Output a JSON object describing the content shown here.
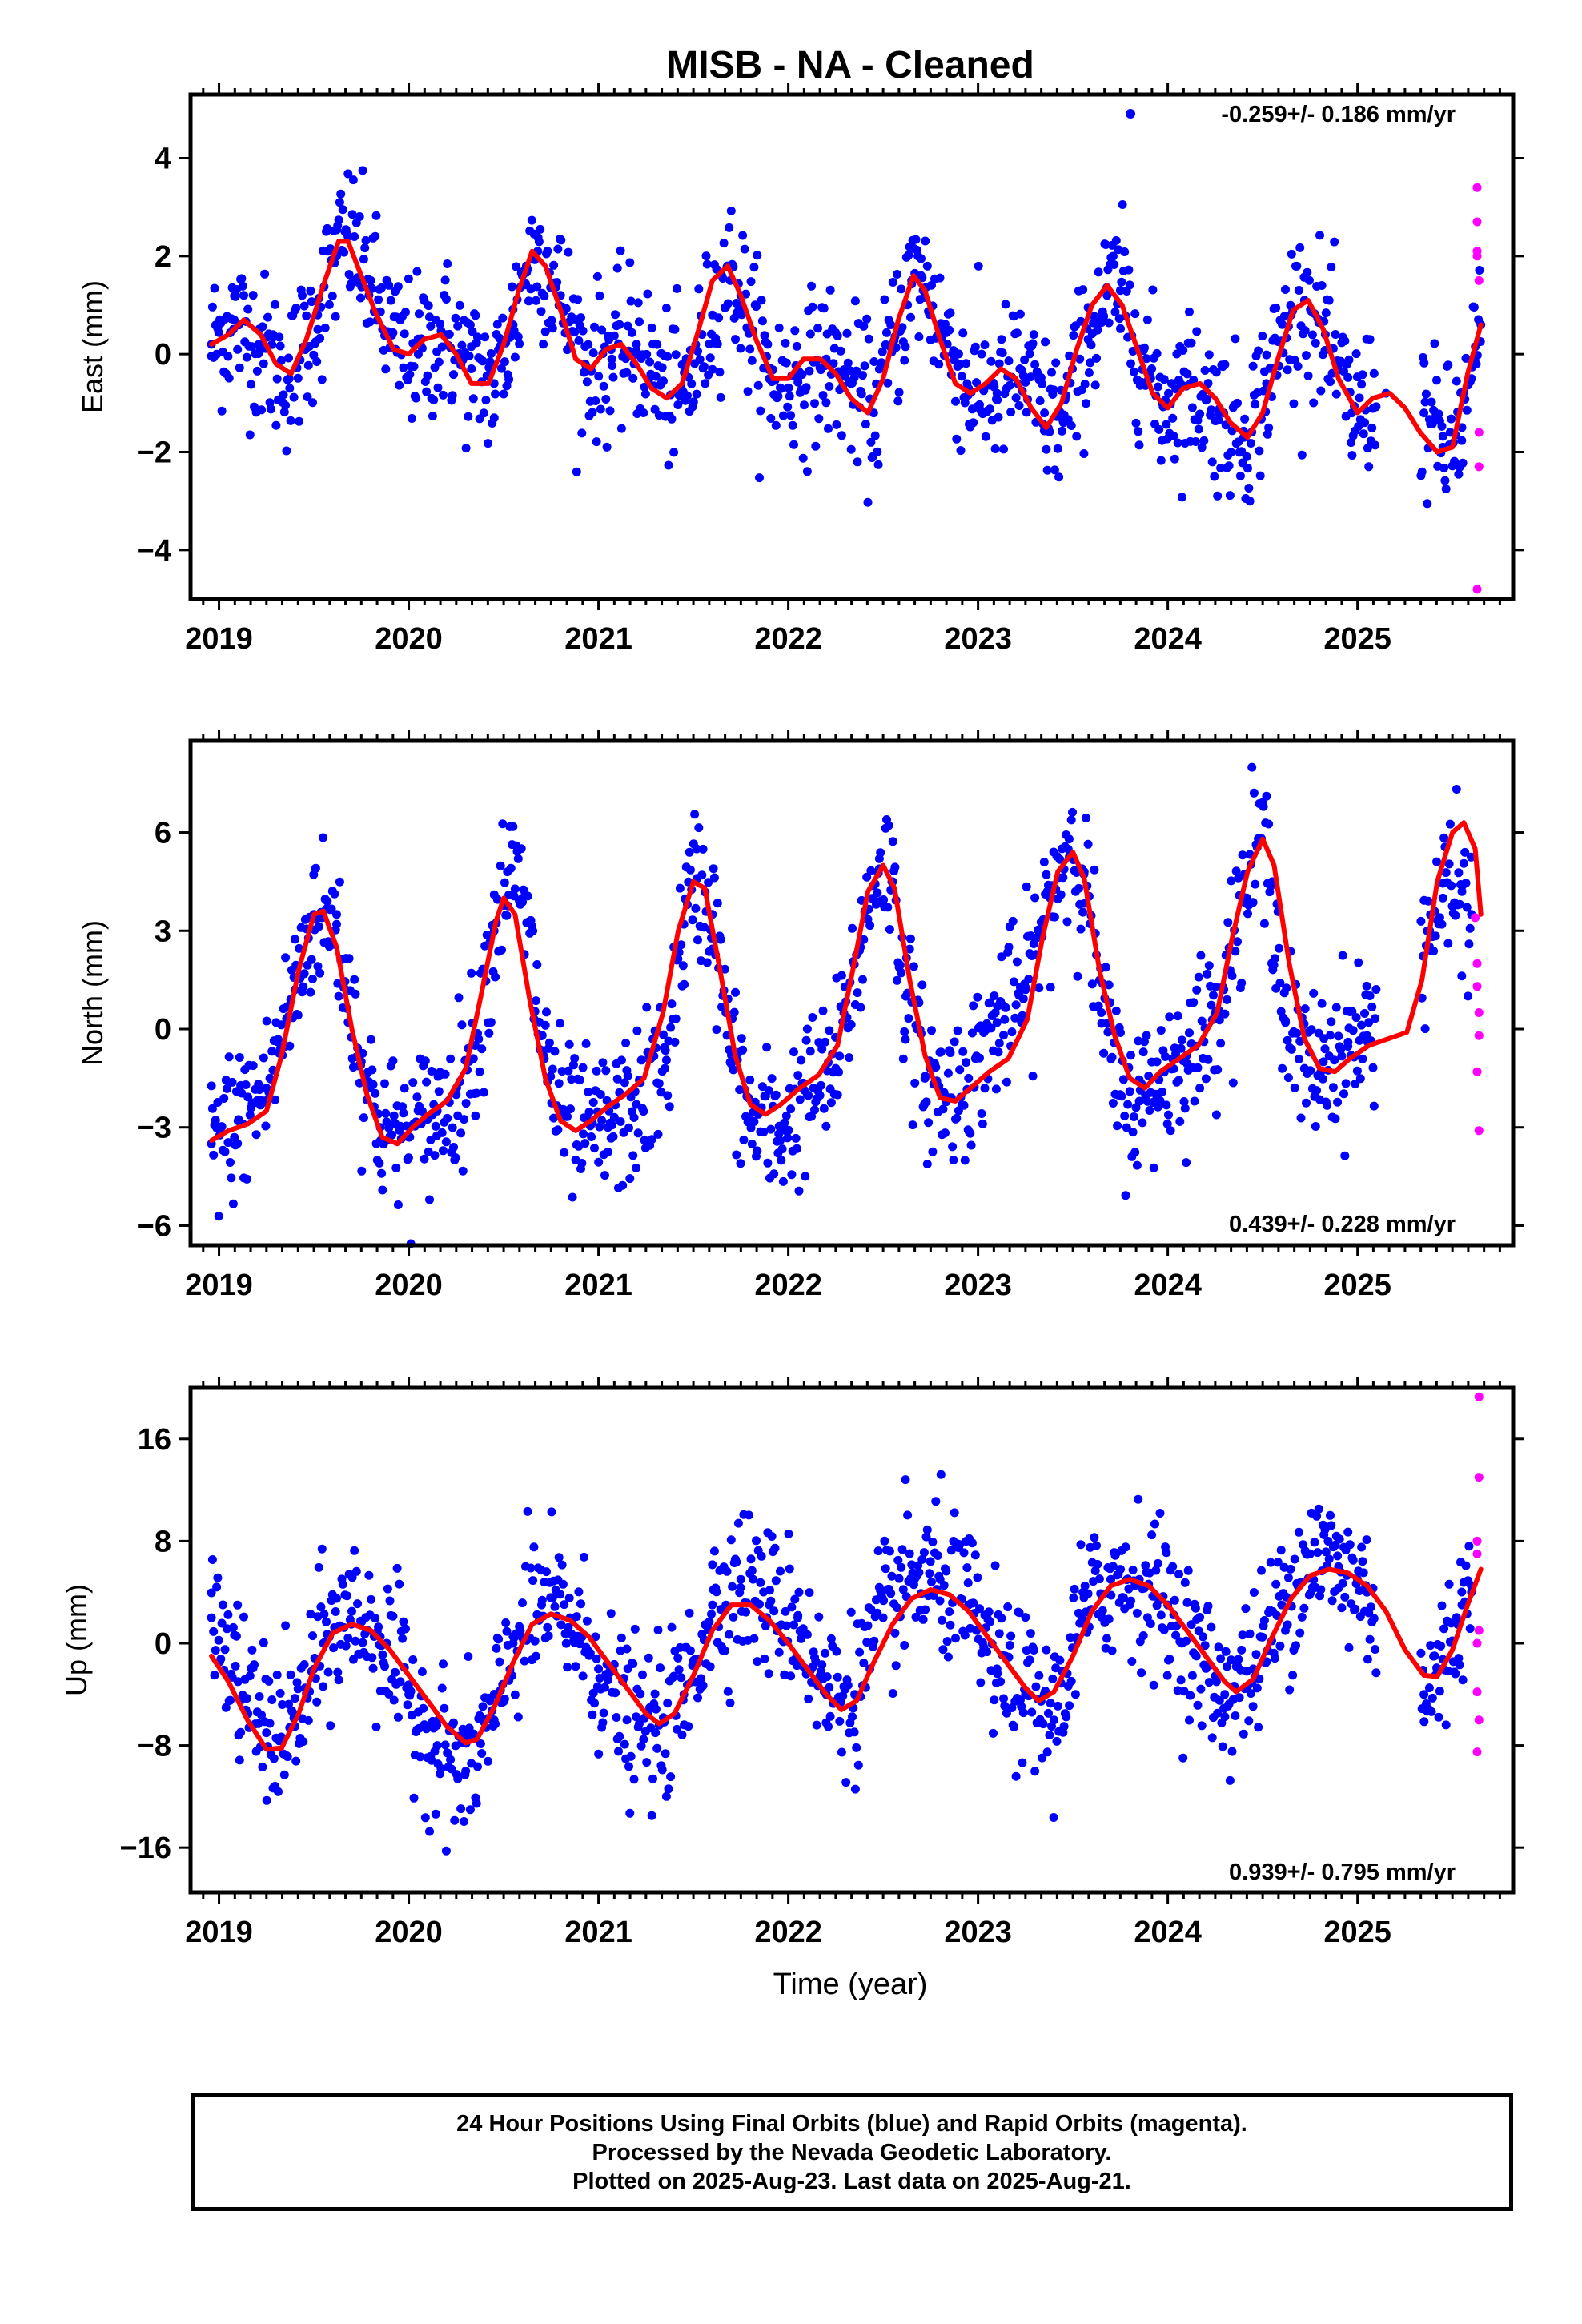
{
  "title": "MISB  - NA - Cleaned",
  "x_axis_label": "Time (year)",
  "footer": {
    "line1": "24 Hour Positions Using Final Orbits (blue) and Rapid Orbits (magenta).",
    "line2": "Processed by the Nevada Geodetic Laboratory.",
    "line3": "Plotted on 2025-Aug-23. Last data on 2025-Aug-21."
  },
  "colors": {
    "final": "#0000ff",
    "rapid": "#ff00ff",
    "fit": "#ff0000"
  },
  "chart_data": [
    {
      "type": "scatter",
      "ylabel": "East (mm)",
      "rate_label": "-0.259+/- 0.186 mm/yr",
      "rate_position": "top-right",
      "xlim": [
        2018.85,
        2025.82
      ],
      "ylim": [
        -5.0,
        5.3
      ],
      "xticks": [
        2019,
        2020,
        2021,
        2022,
        2023,
        2024,
        2025
      ],
      "xtick_labels": [
        "2019",
        "2020",
        "2021",
        "2022",
        "2023",
        "2024",
        "2025"
      ],
      "yticks": [
        -4,
        -2,
        0,
        2,
        4
      ],
      "ytick_labels": [
        "−4",
        "−2",
        "0",
        "2",
        "4"
      ],
      "series": [
        {
          "name": "Final Orbits",
          "color": "blue",
          "x": [
            2018.96,
            2019.08,
            2019.21,
            2019.37,
            2019.52,
            2019.62,
            2019.68,
            2019.8,
            2019.93,
            2020.05,
            2020.2,
            2020.33,
            2020.45,
            2020.55,
            2020.62,
            2020.68,
            2020.8,
            2020.93,
            2021.07,
            2021.2,
            2021.33,
            2021.45,
            2021.6,
            2021.68,
            2021.75,
            2021.9,
            2022.05,
            2022.2,
            2022.33,
            2022.45,
            2022.55,
            2022.65,
            2022.7,
            2022.8,
            2022.95,
            2023.1,
            2023.22,
            2023.35,
            2023.45,
            2023.58,
            2023.68,
            2023.75,
            2023.85,
            2023.97,
            2024.12,
            2024.27,
            2024.4,
            2024.52,
            2024.65,
            2024.72,
            2024.83,
            2024.97,
            2025.15,
            2025.35,
            2025.45,
            2025.55,
            2025.6,
            2025.65
          ],
          "y": [
            0.2,
            0.7,
            0.2,
            -0.5,
            0.8,
            2.0,
            2.4,
            1.5,
            0.1,
            0.0,
            0.4,
            -0.3,
            -0.6,
            0.6,
            1.8,
            2.1,
            1.2,
            -0.2,
            -0.1,
            0.2,
            -0.6,
            -0.9,
            0.8,
            1.8,
            1.2,
            -0.5,
            -0.5,
            -0.1,
            -0.6,
            -1.2,
            0.2,
            1.5,
            1.6,
            0.6,
            -0.7,
            -0.8,
            -0.3,
            -1.2,
            -1.4,
            0.3,
            1.2,
            1.3,
            0.1,
            -1.0,
            -0.6,
            -1.2,
            -1.7,
            -0.6,
            0.8,
            1.1,
            0.4,
            -1.2,
            -0.8,
            -1.2,
            -1.9,
            -1.5,
            -0.5,
            0.6
          ]
        },
        {
          "name": "Rapid Orbits",
          "color": "magenta",
          "x": [
            2025.63,
            2025.63,
            2025.63,
            2025.64,
            2025.64,
            2025.64,
            2025.63,
            2025.63
          ],
          "y": [
            3.4,
            2.7,
            2.1,
            1.5,
            -1.6,
            -2.3,
            -4.8,
            2.0
          ]
        }
      ],
      "fit": {
        "name": "Fit",
        "color": "red",
        "x": [
          2018.96,
          2019.05,
          2019.13,
          2019.22,
          2019.3,
          2019.38,
          2019.46,
          2019.55,
          2019.63,
          2019.68,
          2019.75,
          2019.83,
          2019.92,
          2020.0,
          2020.08,
          2020.17,
          2020.25,
          2020.33,
          2020.42,
          2020.5,
          2020.58,
          2020.65,
          2020.72,
          2020.8,
          2020.88,
          2020.96,
          2021.04,
          2021.12,
          2021.2,
          2021.28,
          2021.36,
          2021.44,
          2021.52,
          2021.6,
          2021.68,
          2021.75,
          2021.83,
          2021.92,
          2022.0,
          2022.08,
          2022.17,
          2022.25,
          2022.33,
          2022.42,
          2022.5,
          2022.58,
          2022.66,
          2022.72,
          2022.8,
          2022.88,
          2022.96,
          2023.04,
          2023.12,
          2023.2,
          2023.28,
          2023.36,
          2023.44,
          2023.52,
          2023.6,
          2023.68,
          2023.76,
          2023.84,
          2023.92,
          2024.0,
          2024.08,
          2024.17,
          2024.25,
          2024.33,
          2024.42,
          2024.5,
          2024.58,
          2024.66,
          2024.74,
          2024.82,
          2024.9,
          2025.0,
          2025.08,
          2025.17,
          2025.25,
          2025.33,
          2025.42,
          2025.5,
          2025.58,
          2025.65
        ],
        "y": [
          0.2,
          0.4,
          0.7,
          0.4,
          -0.2,
          -0.4,
          0.3,
          1.4,
          2.3,
          2.3,
          1.6,
          0.8,
          0.1,
          0.0,
          0.3,
          0.4,
          0.0,
          -0.6,
          -0.6,
          0.2,
          1.3,
          2.1,
          1.8,
          0.9,
          -0.1,
          -0.3,
          0.1,
          0.2,
          -0.2,
          -0.7,
          -0.9,
          -0.6,
          0.4,
          1.5,
          1.8,
          1.2,
          0.3,
          -0.5,
          -0.5,
          -0.1,
          -0.1,
          -0.4,
          -0.9,
          -1.2,
          -0.5,
          0.7,
          1.6,
          1.3,
          0.3,
          -0.6,
          -0.8,
          -0.6,
          -0.3,
          -0.5,
          -1.1,
          -1.5,
          -1.0,
          0.1,
          1.0,
          1.4,
          1.0,
          0.1,
          -0.8,
          -1.1,
          -0.7,
          -0.6,
          -0.9,
          -1.4,
          -1.7,
          -1.2,
          -0.1,
          0.9,
          1.1,
          0.5,
          -0.5,
          -1.2,
          -0.9,
          -0.8,
          -1.1,
          -1.6,
          -2.0,
          -1.9,
          -0.4,
          0.6
        ]
      }
    },
    {
      "type": "scatter",
      "ylabel": "North (mm)",
      "rate_label": "0.439+/- 0.228 mm/yr",
      "rate_position": "bottom-right",
      "xlim": [
        2018.85,
        2025.82
      ],
      "ylim": [
        -6.6,
        8.8
      ],
      "xticks": [
        2019,
        2020,
        2021,
        2022,
        2023,
        2024,
        2025
      ],
      "xtick_labels": [
        "2019",
        "2020",
        "2021",
        "2022",
        "2023",
        "2024",
        "2025"
      ],
      "yticks": [
        -6,
        -3,
        0,
        3,
        6
      ],
      "ytick_labels": [
        "−6",
        "−3",
        "0",
        "3",
        "6"
      ],
      "series": [
        {
          "name": "Final Orbits",
          "color": "blue",
          "x": [
            2018.96,
            2019.1,
            2019.25,
            2019.4,
            2019.5,
            2019.62,
            2019.75,
            2019.85,
            2020.0,
            2020.15,
            2020.25,
            2020.35,
            2020.45,
            2020.52,
            2020.6,
            2020.7,
            2020.8,
            2020.92,
            2021.05,
            2021.2,
            2021.35,
            2021.45,
            2021.52,
            2021.6,
            2021.7,
            2021.8,
            2021.95,
            2022.1,
            2022.25,
            2022.38,
            2022.48,
            2022.55,
            2022.62,
            2022.72,
            2022.82,
            2022.95,
            2023.1,
            2023.25,
            2023.38,
            2023.48,
            2023.56,
            2023.65,
            2023.75,
            2023.85,
            2023.95,
            2024.1,
            2024.25,
            2024.4,
            2024.48,
            2024.55,
            2024.62,
            2024.72,
            2024.82,
            2024.95,
            2025.05,
            2025.38,
            2025.45,
            2025.55,
            2025.6
          ],
          "y": [
            -3.5,
            -2.8,
            -1.8,
            1.2,
            3.5,
            3.2,
            -1.0,
            -3.0,
            -3.3,
            -2.5,
            -2.0,
            -0.5,
            3.0,
            4.8,
            4.0,
            -0.2,
            -2.6,
            -3.2,
            -3.0,
            -2.3,
            -1.2,
            3.2,
            4.6,
            3.5,
            -0.8,
            -2.8,
            -3.2,
            -2.0,
            -1.2,
            2.5,
            5.2,
            4.5,
            1.0,
            -1.5,
            -2.0,
            -1.5,
            0.2,
            1.2,
            4.0,
            5.8,
            4.8,
            0.5,
            -2.0,
            -2.2,
            -1.5,
            -0.8,
            0.5,
            4.0,
            5.8,
            4.5,
            0.2,
            -1.2,
            -1.0,
            -0.4,
            -0.2,
            3.0,
            4.0,
            4.2,
            3.5
          ]
        },
        {
          "name": "Rapid Orbits",
          "color": "magenta",
          "x": [
            2025.62,
            2025.63,
            2025.63,
            2025.64,
            2025.64,
            2025.63,
            2025.64
          ],
          "y": [
            3.4,
            2.0,
            1.3,
            0.5,
            -0.2,
            -1.3,
            -3.1
          ]
        }
      ],
      "fit": {
        "name": "Fit",
        "color": "red",
        "x": [
          2018.96,
          2019.05,
          2019.15,
          2019.25,
          2019.33,
          2019.42,
          2019.5,
          2019.55,
          2019.62,
          2019.7,
          2019.78,
          2019.86,
          2019.94,
          2020.02,
          2020.1,
          2020.2,
          2020.3,
          2020.38,
          2020.46,
          2020.5,
          2020.56,
          2020.64,
          2020.72,
          2020.8,
          2020.88,
          2020.96,
          2021.04,
          2021.14,
          2021.24,
          2021.34,
          2021.42,
          2021.5,
          2021.56,
          2021.64,
          2021.72,
          2021.8,
          2021.88,
          2021.96,
          2022.06,
          2022.16,
          2022.26,
          2022.34,
          2022.42,
          2022.5,
          2022.56,
          2022.64,
          2022.72,
          2022.8,
          2022.88,
          2022.96,
          2023.06,
          2023.16,
          2023.26,
          2023.34,
          2023.42,
          2023.5,
          2023.56,
          2023.64,
          2023.72,
          2023.8,
          2023.88,
          2023.96,
          2024.06,
          2024.16,
          2024.26,
          2024.34,
          2024.42,
          2024.5,
          2024.56,
          2024.64,
          2024.72,
          2024.8,
          2024.88,
          2024.96,
          2025.06,
          2025.16,
          2025.26,
          2025.34,
          2025.42,
          2025.5,
          2025.56,
          2025.62,
          2025.65
        ],
        "y": [
          -3.4,
          -3.1,
          -2.9,
          -2.5,
          -0.8,
          1.8,
          3.5,
          3.6,
          2.5,
          0.0,
          -2.0,
          -3.3,
          -3.5,
          -3.0,
          -2.6,
          -2.2,
          -1.2,
          1.0,
          3.3,
          4.0,
          3.5,
          0.8,
          -1.5,
          -2.8,
          -3.1,
          -2.8,
          -2.4,
          -2.0,
          -1.5,
          0.5,
          3.0,
          4.5,
          4.3,
          1.8,
          -0.8,
          -2.3,
          -2.6,
          -2.3,
          -1.8,
          -1.4,
          -0.5,
          1.8,
          4.2,
          5.0,
          4.3,
          1.5,
          -0.8,
          -2.1,
          -2.2,
          -1.8,
          -1.3,
          -0.9,
          0.3,
          2.8,
          4.8,
          5.4,
          4.6,
          1.8,
          -0.2,
          -1.5,
          -1.8,
          -1.3,
          -0.9,
          -0.5,
          0.5,
          2.8,
          4.8,
          5.8,
          5.0,
          2.0,
          -0.3,
          -1.2,
          -1.3,
          -0.9,
          -0.5,
          -0.3,
          -0.1,
          1.5,
          4.5,
          6.0,
          6.3,
          5.5,
          3.5
        ]
      }
    },
    {
      "type": "scatter",
      "ylabel": "Up (mm)",
      "rate_label": "0.939+/- 0.795 mm/yr",
      "rate_position": "bottom-right",
      "xlim": [
        2018.85,
        2025.82
      ],
      "ylim": [
        -19.5,
        20.0
      ],
      "xticks": [
        2019,
        2020,
        2021,
        2022,
        2023,
        2024,
        2025
      ],
      "xtick_labels": [
        "2019",
        "2020",
        "2021",
        "2022",
        "2023",
        "2024",
        "2025"
      ],
      "yticks": [
        -16,
        -8,
        0,
        8,
        16
      ],
      "ytick_labels": [
        "−16",
        "−8",
        "0",
        "8",
        "16"
      ],
      "series": [
        {
          "name": "Final Orbits",
          "color": "blue",
          "x": [
            2018.96,
            2019.1,
            2019.25,
            2019.4,
            2019.55,
            2019.7,
            2019.85,
            2020.0,
            2020.15,
            2020.3,
            2020.45,
            2020.55,
            2020.7,
            2020.85,
            2021.0,
            2021.15,
            2021.3,
            2021.45,
            2021.6,
            2021.75,
            2021.9,
            2022.05,
            2022.2,
            2022.35,
            2022.5,
            2022.65,
            2022.8,
            2022.95,
            2023.1,
            2023.25,
            2023.4,
            2023.55,
            2023.7,
            2023.85,
            2024.0,
            2024.15,
            2024.3,
            2024.45,
            2024.6,
            2024.75,
            2024.9,
            2025.05,
            2025.35,
            2025.45,
            2025.55,
            2025.6
          ],
          "y": [
            2.0,
            -3.0,
            -7.0,
            -6.5,
            0.0,
            2.5,
            0.5,
            -4.0,
            -8.0,
            -10.0,
            -6.0,
            0.0,
            3.0,
            2.0,
            -2.0,
            -6.0,
            -7.0,
            -4.0,
            3.0,
            5.0,
            3.0,
            2.0,
            -4.0,
            -4.0,
            2.0,
            5.0,
            5.0,
            3.0,
            -2.0,
            -4.0,
            -6.0,
            2.0,
            5.0,
            5.0,
            3.0,
            -1.0,
            -4.0,
            -2.0,
            3.0,
            7.0,
            6.0,
            4.0,
            -4.0,
            -2.0,
            3.0,
            4.0
          ]
        },
        {
          "name": "Rapid Orbits",
          "color": "magenta",
          "x": [
            2025.64,
            2025.64,
            2025.63,
            2025.63,
            2025.64,
            2025.63,
            2025.63,
            2025.64,
            2025.63
          ],
          "y": [
            19.3,
            13.0,
            8.0,
            7.0,
            1.0,
            0.0,
            -3.8,
            -6.0,
            -8.5
          ]
        }
      ],
      "fit": {
        "name": "Fit",
        "color": "red",
        "x": [
          2018.96,
          2019.05,
          2019.15,
          2019.25,
          2019.33,
          2019.42,
          2019.5,
          2019.6,
          2019.7,
          2019.8,
          2019.9,
          2020.0,
          2020.1,
          2020.2,
          2020.3,
          2020.36,
          2020.45,
          2020.55,
          2020.65,
          2020.75,
          2020.85,
          2020.95,
          2021.05,
          2021.15,
          2021.25,
          2021.32,
          2021.4,
          2021.5,
          2021.6,
          2021.7,
          2021.8,
          2021.9,
          2022.0,
          2022.1,
          2022.2,
          2022.28,
          2022.36,
          2022.45,
          2022.55,
          2022.65,
          2022.75,
          2022.85,
          2022.95,
          2023.05,
          2023.15,
          2023.25,
          2023.32,
          2023.4,
          2023.5,
          2023.6,
          2023.7,
          2023.8,
          2023.9,
          2024.0,
          2024.1,
          2024.2,
          2024.3,
          2024.36,
          2024.45,
          2024.55,
          2024.65,
          2024.75,
          2024.85,
          2024.95,
          2025.05,
          2025.15,
          2025.25,
          2025.35,
          2025.42,
          2025.5,
          2025.58,
          2025.65
        ],
        "y": [
          -1.0,
          -3.0,
          -6.0,
          -8.3,
          -8.2,
          -5.5,
          -2.0,
          0.8,
          1.5,
          1.0,
          -0.5,
          -2.5,
          -4.5,
          -6.5,
          -7.8,
          -7.5,
          -5.0,
          -1.5,
          1.5,
          2.3,
          1.8,
          0.5,
          -1.5,
          -3.5,
          -5.5,
          -6.3,
          -5.5,
          -2.5,
          1.0,
          3.0,
          3.0,
          1.8,
          0.0,
          -2.0,
          -4.0,
          -5.2,
          -4.5,
          -1.5,
          1.5,
          3.5,
          4.2,
          3.8,
          2.5,
          0.5,
          -1.5,
          -3.5,
          -4.5,
          -3.8,
          -1.0,
          2.5,
          4.5,
          5.0,
          4.5,
          3.0,
          1.0,
          -1.0,
          -3.0,
          -3.8,
          -2.8,
          0.5,
          3.5,
          5.3,
          5.8,
          5.5,
          4.5,
          2.5,
          -0.5,
          -2.5,
          -2.6,
          -0.5,
          3.0,
          5.8
        ]
      }
    }
  ]
}
